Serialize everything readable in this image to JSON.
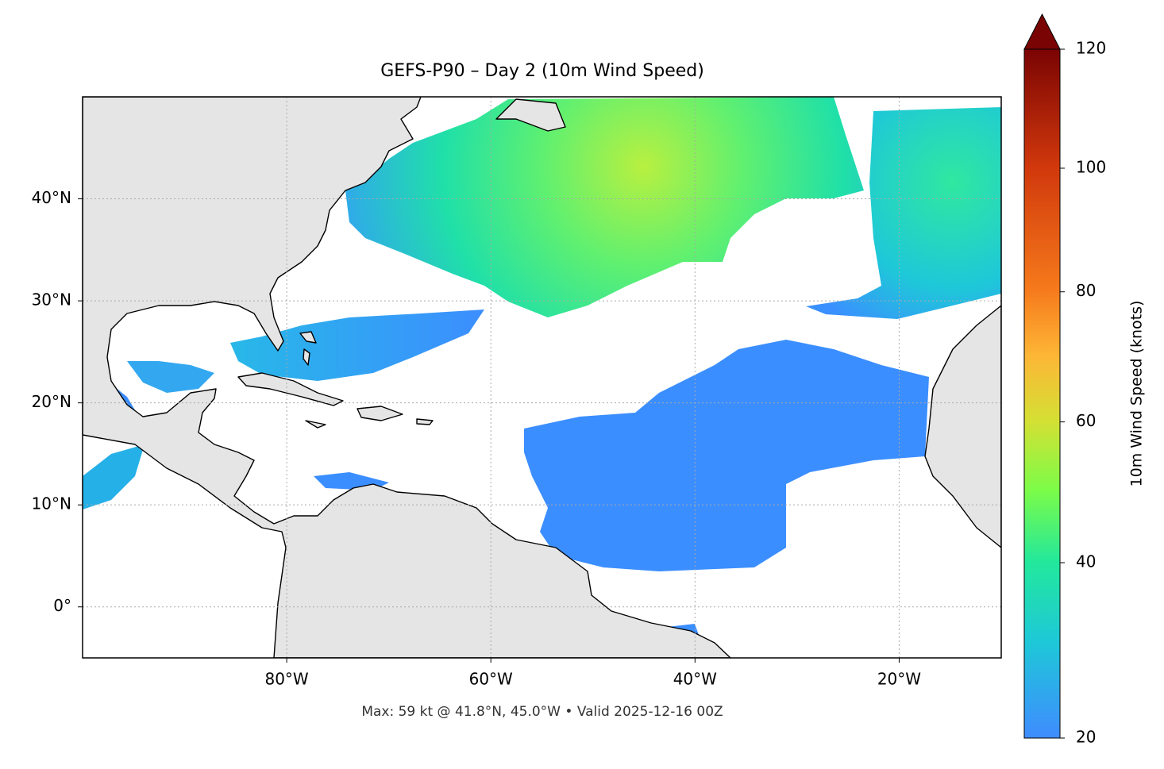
{
  "chart_data": {
    "type": "map",
    "title": "GEFS-P90 – Day 2 (10m Wind Speed)",
    "xlim": [
      -100,
      -10
    ],
    "ylim": [
      -5,
      50
    ],
    "xticks": [
      {
        "value": -80,
        "label": "80°W"
      },
      {
        "value": -60,
        "label": "60°W"
      },
      {
        "value": -40,
        "label": "40°W"
      },
      {
        "value": -20,
        "label": "20°W"
      }
    ],
    "yticks": [
      {
        "value": 0,
        "label": "0°"
      },
      {
        "value": 10,
        "label": "10°N"
      },
      {
        "value": 20,
        "label": "20°N"
      },
      {
        "value": 30,
        "label": "30°N"
      },
      {
        "value": 40,
        "label": "40°N"
      }
    ],
    "grid": true,
    "colorbar": {
      "label": "10m Wind Speed (knots)",
      "lim": [
        20,
        120
      ],
      "ticks": [
        20,
        40,
        60,
        80,
        100,
        120
      ]
    },
    "footer": "Max: 59 kt @ 41.8°N, 45.0°W • Valid 2025-12-16 00Z"
  }
}
